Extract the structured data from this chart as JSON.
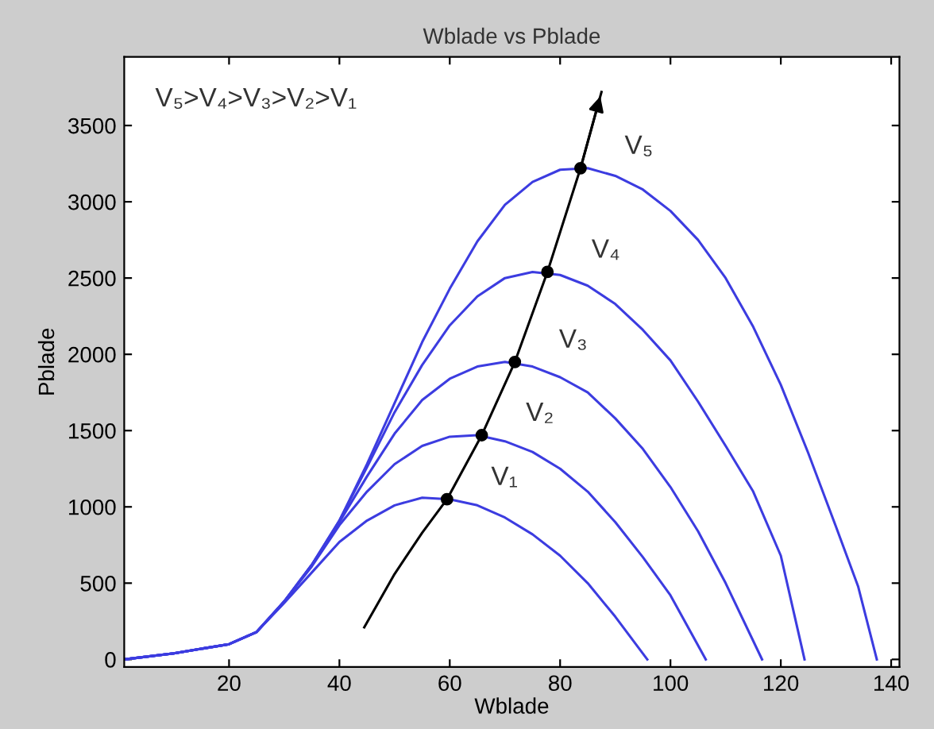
{
  "chart_data": {
    "type": "line",
    "title": "Wblade vs Pblade",
    "xlabel": "Wblade",
    "ylabel": "Pblade",
    "xlim": [
      1,
      141.5
    ],
    "ylim": [
      -50,
      3950
    ],
    "xticks": [
      20,
      40,
      60,
      80,
      100,
      120,
      140
    ],
    "yticks": [
      0,
      500,
      1000,
      1500,
      2000,
      2500,
      3000,
      3500
    ],
    "grid": false,
    "marker": "none",
    "line_style": "solid",
    "series": [
      {
        "name": "V₁",
        "color": "#3c3ce0",
        "x": [
          1,
          10,
          20,
          25,
          30,
          35,
          40,
          45,
          50,
          55,
          60,
          65,
          70,
          75,
          80,
          85,
          90,
          95.8
        ],
        "values": [
          0,
          40,
          100,
          180,
          370,
          570,
          770,
          910,
          1010,
          1060,
          1050,
          1010,
          930,
          820,
          680,
          500,
          280,
          0
        ]
      },
      {
        "name": "V₂",
        "color": "#3c3ce0",
        "x": [
          1,
          10,
          20,
          25,
          30,
          35,
          40,
          45,
          50,
          55,
          60,
          65,
          70,
          75,
          80,
          85,
          90,
          95,
          100,
          106.4
        ],
        "values": [
          0,
          40,
          100,
          180,
          380,
          610,
          880,
          1100,
          1280,
          1400,
          1460,
          1470,
          1430,
          1360,
          1250,
          1100,
          900,
          670,
          420,
          0
        ]
      },
      {
        "name": "V₃",
        "color": "#3c3ce0",
        "x": [
          1,
          10,
          20,
          25,
          30,
          35,
          40,
          45,
          50,
          55,
          60,
          65,
          70,
          75,
          80,
          85,
          90,
          95,
          100,
          105,
          110,
          116.6
        ],
        "values": [
          0,
          40,
          100,
          180,
          380,
          620,
          900,
          1200,
          1480,
          1700,
          1840,
          1920,
          1950,
          1920,
          1850,
          1750,
          1580,
          1380,
          1130,
          840,
          500,
          0
        ]
      },
      {
        "name": "V₄",
        "color": "#3c3ce0",
        "x": [
          1,
          10,
          20,
          25,
          30,
          35,
          40,
          45,
          50,
          55,
          60,
          65,
          70,
          75,
          80,
          85,
          90,
          95,
          100,
          105,
          110,
          115,
          120,
          124.3
        ],
        "values": [
          0,
          40,
          100,
          180,
          380,
          620,
          910,
          1260,
          1620,
          1930,
          2190,
          2380,
          2500,
          2540,
          2520,
          2450,
          2330,
          2160,
          1960,
          1690,
          1400,
          1100,
          680,
          0
        ]
      },
      {
        "name": "V₅",
        "color": "#3c3ce0",
        "x": [
          1,
          10,
          20,
          25,
          30,
          35,
          40,
          45,
          50,
          55,
          60,
          65,
          70,
          75,
          80,
          85,
          90,
          95,
          100,
          105,
          110,
          115,
          120,
          125,
          130,
          134,
          137.4
        ],
        "values": [
          0,
          40,
          100,
          180,
          380,
          620,
          910,
          1280,
          1680,
          2080,
          2430,
          2740,
          2980,
          3130,
          3210,
          3220,
          3170,
          3080,
          2940,
          2750,
          2500,
          2180,
          1800,
          1350,
          870,
          480,
          0
        ]
      },
      {
        "color": "#000000",
        "x": [
          44.5,
          50,
          55,
          59.5,
          65.8,
          71.8,
          77.7,
          83.7,
          87.5
        ],
        "values": [
          210,
          560,
          830,
          1050,
          1470,
          1950,
          2540,
          3220,
          3720
        ]
      },
      {
        "type": "scatter",
        "marker": "circle",
        "color": "#000000",
        "x": [
          59.5,
          65.8,
          71.8,
          77.7,
          83.7
        ],
        "values": [
          1050,
          1470,
          1950,
          2540,
          3220
        ]
      }
    ],
    "annotations": [
      "V₅>V₄>V₃>V₂>V₁"
    ]
  }
}
